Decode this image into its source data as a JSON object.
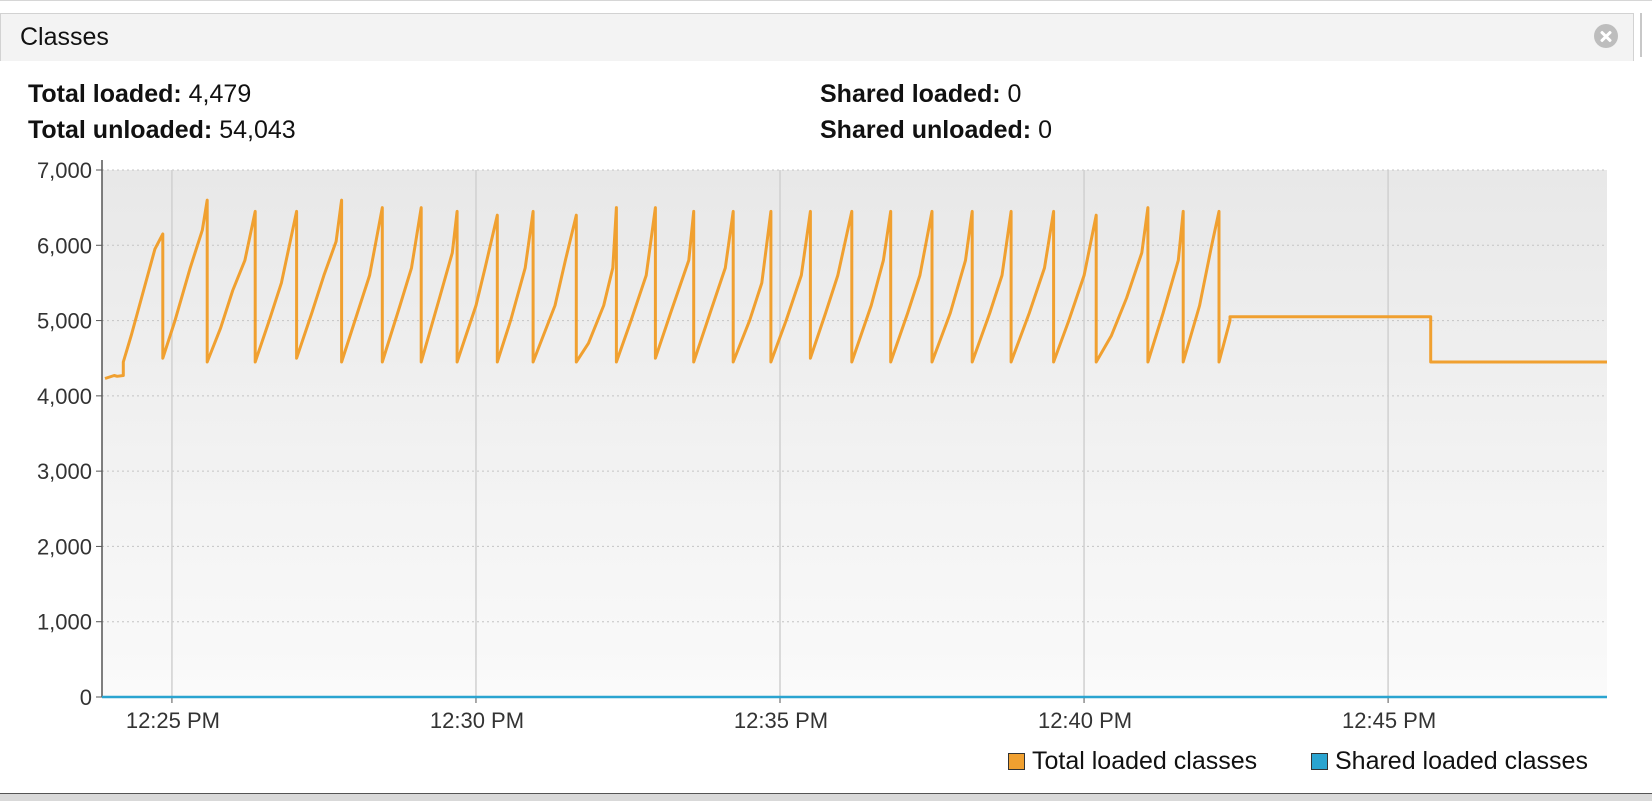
{
  "panel": {
    "title": "Classes"
  },
  "stats": {
    "total_loaded_label": "Total loaded:",
    "total_loaded_value": "4,479",
    "total_unloaded_label": "Total unloaded:",
    "total_unloaded_value": "54,043",
    "shared_loaded_label": "Shared loaded:",
    "shared_loaded_value": "0",
    "shared_unloaded_label": "Shared unloaded:",
    "shared_unloaded_value": "0"
  },
  "colors": {
    "total": "#f0a030",
    "shared": "#2aa4d0",
    "plot_bg_top": "#e8e8e8",
    "plot_bg_bottom": "#fafafa"
  },
  "chart_data": {
    "type": "line",
    "x_unit": "minutes after 12:00 PM",
    "xlim": [
      23.85,
      48.6
    ],
    "ylim": [
      0,
      7000
    ],
    "y_ticks": [
      0,
      1000,
      2000,
      3000,
      4000,
      5000,
      6000,
      7000
    ],
    "y_tick_labels": [
      "0",
      "1,000",
      "2,000",
      "3,000",
      "4,000",
      "5,000",
      "6,000",
      "7,000"
    ],
    "x_ticks": [
      25,
      30,
      35,
      40,
      45
    ],
    "x_tick_labels": [
      "12:25 PM",
      "12:30 PM",
      "12:35 PM",
      "12:40 PM",
      "12:45 PM"
    ],
    "grid": true,
    "legend_position": "bottom-right",
    "series": [
      {
        "name": "Total loaded classes",
        "color": "#f0a030",
        "points": [
          [
            23.9,
            4230
          ],
          [
            24.05,
            4270
          ],
          [
            24.1,
            4260
          ],
          [
            24.2,
            4270
          ],
          [
            24.2,
            4450
          ],
          [
            24.33,
            4800
          ],
          [
            24.5,
            5300
          ],
          [
            24.72,
            5950
          ],
          [
            24.85,
            6150
          ],
          [
            24.85,
            4500
          ],
          [
            25.05,
            5000
          ],
          [
            25.3,
            5700
          ],
          [
            25.5,
            6200
          ],
          [
            25.58,
            6600
          ],
          [
            25.58,
            4450
          ],
          [
            25.8,
            4900
          ],
          [
            26.0,
            5400
          ],
          [
            26.2,
            5800
          ],
          [
            26.37,
            6450
          ],
          [
            26.37,
            4450
          ],
          [
            26.6,
            5000
          ],
          [
            26.8,
            5500
          ],
          [
            27.05,
            6450
          ],
          [
            27.05,
            4500
          ],
          [
            27.3,
            5100
          ],
          [
            27.5,
            5600
          ],
          [
            27.7,
            6050
          ],
          [
            27.79,
            6600
          ],
          [
            27.79,
            4450
          ],
          [
            28.05,
            5100
          ],
          [
            28.25,
            5600
          ],
          [
            28.46,
            6500
          ],
          [
            28.46,
            4450
          ],
          [
            28.75,
            5200
          ],
          [
            28.94,
            5700
          ],
          [
            29.1,
            6500
          ],
          [
            29.1,
            4450
          ],
          [
            29.4,
            5300
          ],
          [
            29.61,
            5900
          ],
          [
            29.69,
            6450
          ],
          [
            29.69,
            4450
          ],
          [
            30.0,
            5200
          ],
          [
            30.15,
            5700
          ],
          [
            30.35,
            6400
          ],
          [
            30.35,
            4450
          ],
          [
            30.57,
            5000
          ],
          [
            30.81,
            5700
          ],
          [
            30.94,
            6450
          ],
          [
            30.94,
            4450
          ],
          [
            31.3,
            5200
          ],
          [
            31.47,
            5800
          ],
          [
            31.65,
            6400
          ],
          [
            31.65,
            4450
          ],
          [
            31.85,
            4700
          ],
          [
            32.1,
            5200
          ],
          [
            32.25,
            5700
          ],
          [
            32.31,
            6500
          ],
          [
            32.31,
            4450
          ],
          [
            32.55,
            5000
          ],
          [
            32.8,
            5600
          ],
          [
            32.95,
            6500
          ],
          [
            32.95,
            4500
          ],
          [
            33.2,
            5100
          ],
          [
            33.5,
            5800
          ],
          [
            33.58,
            6450
          ],
          [
            33.58,
            4450
          ],
          [
            33.85,
            5100
          ],
          [
            34.1,
            5700
          ],
          [
            34.23,
            6450
          ],
          [
            34.23,
            4450
          ],
          [
            34.5,
            5000
          ],
          [
            34.7,
            5500
          ],
          [
            34.85,
            6450
          ],
          [
            34.85,
            4450
          ],
          [
            35.1,
            5000
          ],
          [
            35.35,
            5600
          ],
          [
            35.5,
            6450
          ],
          [
            35.5,
            4500
          ],
          [
            35.75,
            5100
          ],
          [
            35.95,
            5600
          ],
          [
            36.18,
            6450
          ],
          [
            36.18,
            4450
          ],
          [
            36.5,
            5200
          ],
          [
            36.7,
            5800
          ],
          [
            36.82,
            6450
          ],
          [
            36.82,
            4450
          ],
          [
            37.1,
            5100
          ],
          [
            37.3,
            5600
          ],
          [
            37.5,
            6450
          ],
          [
            37.5,
            4450
          ],
          [
            37.8,
            5100
          ],
          [
            38.05,
            5800
          ],
          [
            38.16,
            6450
          ],
          [
            38.16,
            4450
          ],
          [
            38.45,
            5100
          ],
          [
            38.65,
            5600
          ],
          [
            38.8,
            6450
          ],
          [
            38.8,
            4450
          ],
          [
            39.1,
            5100
          ],
          [
            39.35,
            5700
          ],
          [
            39.5,
            6450
          ],
          [
            39.5,
            4450
          ],
          [
            39.75,
            5000
          ],
          [
            40.0,
            5600
          ],
          [
            40.2,
            6400
          ],
          [
            40.2,
            4450
          ],
          [
            40.45,
            4800
          ],
          [
            40.7,
            5300
          ],
          [
            40.95,
            5900
          ],
          [
            41.05,
            6500
          ],
          [
            41.05,
            4450
          ],
          [
            41.3,
            5100
          ],
          [
            41.55,
            5800
          ],
          [
            41.63,
            6450
          ],
          [
            41.63,
            4450
          ],
          [
            41.9,
            5200
          ],
          [
            42.1,
            6000
          ],
          [
            42.22,
            6450
          ],
          [
            42.22,
            4450
          ],
          [
            42.4,
            5000
          ],
          [
            42.4,
            5050
          ],
          [
            45.7,
            5050
          ],
          [
            45.7,
            4450
          ],
          [
            46.1,
            4450
          ],
          [
            46.2,
            4450
          ],
          [
            48.6,
            4450
          ]
        ]
      },
      {
        "name": "Shared loaded classes",
        "color": "#2aa4d0",
        "points": [
          [
            23.85,
            0
          ],
          [
            48.6,
            0
          ]
        ]
      }
    ]
  }
}
